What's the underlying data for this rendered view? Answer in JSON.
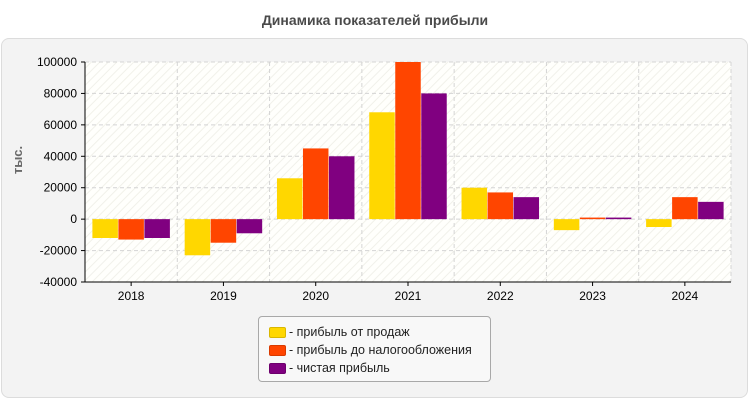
{
  "chart_data": {
    "type": "bar",
    "title": "Динамика показателей прибыли",
    "ylabel": "тыс.",
    "xlabel": "",
    "categories": [
      "2018",
      "2019",
      "2020",
      "2021",
      "2022",
      "2023",
      "2024"
    ],
    "series": [
      {
        "name": "- прибыль от продаж",
        "color": "#FFD700",
        "values": [
          -12000,
          -23000,
          26000,
          68000,
          20000,
          -7000,
          -5000
        ]
      },
      {
        "name": "- прибыль до налогообложения",
        "color": "#FF4500",
        "values": [
          -13000,
          -15000,
          45000,
          100000,
          17000,
          1000,
          14000
        ]
      },
      {
        "name": "- чистая прибыль",
        "color": "#800080",
        "values": [
          -12000,
          -9000,
          40000,
          80000,
          14000,
          1000,
          11000
        ]
      }
    ],
    "ylim": [
      -40000,
      100000
    ],
    "yticks": [
      -40000,
      -20000,
      0,
      20000,
      40000,
      60000,
      80000,
      100000
    ],
    "grid": true,
    "legend_position": "bottom-center"
  }
}
